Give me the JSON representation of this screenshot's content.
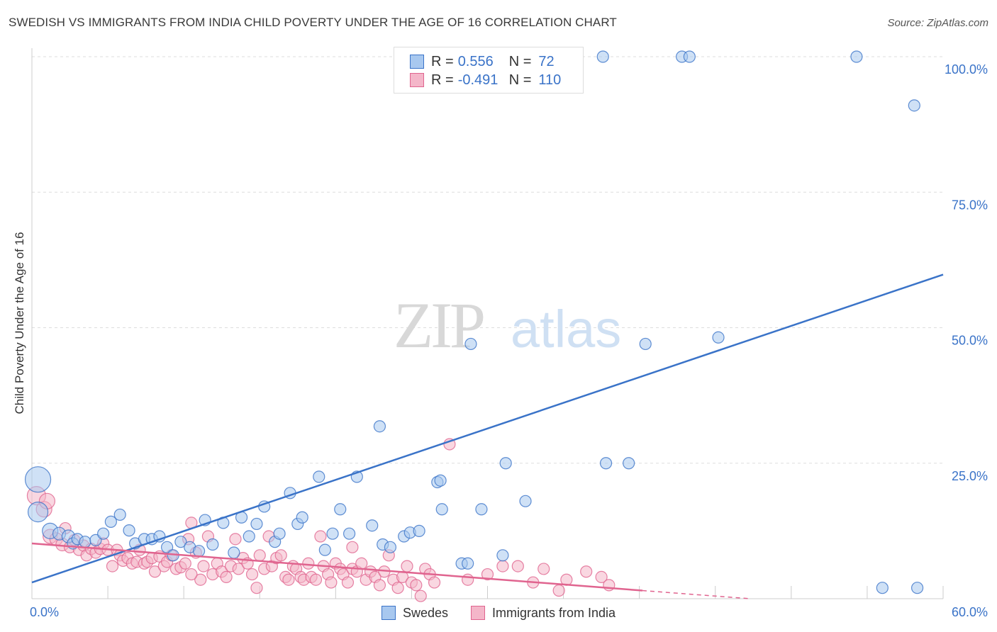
{
  "title": "SWEDISH VS IMMIGRANTS FROM INDIA CHILD POVERTY UNDER THE AGE OF 16 CORRELATION CHART",
  "source": "Source: ZipAtlas.com",
  "watermark": {
    "zip": "ZIP",
    "atlas": "atlas"
  },
  "colors": {
    "blue": "#3a73c8",
    "blue_fill": "#a8c8ef",
    "pink": "#e0648f",
    "pink_fill": "#f4b6c9",
    "grid": "#dddddd"
  },
  "stats": [
    {
      "r_label": "R =",
      "r_value": "0.556",
      "n_label": "N =",
      "n_value": "72"
    },
    {
      "r_label": "R =",
      "r_value": "-0.491",
      "n_label": "N =",
      "n_value": "110"
    }
  ],
  "legend": [
    {
      "label": "Swedes"
    },
    {
      "label": "Immigrants from India"
    }
  ],
  "chart_data": {
    "type": "scatter",
    "xlabel": "",
    "ylabel": "Child Poverty Under the Age of 16",
    "xlim": [
      0,
      60
    ],
    "ylim": [
      0,
      100
    ],
    "x_tick_labels": [
      {
        "value": 0,
        "label": "0.0%"
      },
      {
        "value": 60,
        "label": "60.0%"
      }
    ],
    "y_tick_labels": [
      {
        "value": 25,
        "label": "25.0%"
      },
      {
        "value": 50,
        "label": "50.0%"
      },
      {
        "value": 75,
        "label": "75.0%"
      },
      {
        "value": 100,
        "label": "100.0%"
      }
    ],
    "grid": true,
    "legend_position": "bottom",
    "series": [
      {
        "name": "Swedes",
        "color": "#3a73c8",
        "trend": {
          "x": [
            0,
            60
          ],
          "y": [
            3.0,
            59.8
          ]
        },
        "points": [
          [
            0.4,
            22.0,
            18
          ],
          [
            0.4,
            16.0,
            14
          ],
          [
            1.2,
            12.5,
            11
          ],
          [
            1.8,
            12.0,
            9
          ],
          [
            2.4,
            11.5,
            9
          ],
          [
            2.7,
            10.2,
            8
          ],
          [
            3.0,
            11.0,
            8
          ],
          [
            3.5,
            10.5,
            8
          ],
          [
            4.2,
            10.8,
            8
          ],
          [
            4.7,
            12.0,
            8
          ],
          [
            5.2,
            14.2,
            8
          ],
          [
            5.8,
            15.5,
            8
          ],
          [
            6.4,
            12.6,
            8
          ],
          [
            6.8,
            10.2,
            8
          ],
          [
            7.4,
            11.0,
            8
          ],
          [
            7.9,
            11.0,
            8
          ],
          [
            8.4,
            11.5,
            8
          ],
          [
            8.9,
            9.5,
            8
          ],
          [
            9.3,
            8.0,
            8
          ],
          [
            9.8,
            10.5,
            8
          ],
          [
            10.4,
            9.5,
            8
          ],
          [
            11.0,
            8.8,
            8
          ],
          [
            11.4,
            14.5,
            8
          ],
          [
            11.9,
            10.0,
            8
          ],
          [
            12.6,
            14.0,
            8
          ],
          [
            13.3,
            8.5,
            8
          ],
          [
            13.8,
            15.0,
            8
          ],
          [
            14.3,
            11.5,
            8
          ],
          [
            14.8,
            13.8,
            8
          ],
          [
            15.3,
            17.0,
            8
          ],
          [
            16.0,
            10.5,
            8
          ],
          [
            16.3,
            12.0,
            8
          ],
          [
            17.0,
            19.5,
            8
          ],
          [
            17.5,
            13.8,
            8
          ],
          [
            17.8,
            15.0,
            8
          ],
          [
            18.9,
            22.5,
            8
          ],
          [
            19.3,
            9.0,
            8
          ],
          [
            19.8,
            12.0,
            8
          ],
          [
            20.3,
            16.5,
            8
          ],
          [
            20.9,
            12.0,
            8
          ],
          [
            21.4,
            22.5,
            8
          ],
          [
            22.4,
            13.5,
            8
          ],
          [
            22.9,
            31.8,
            8
          ],
          [
            23.1,
            10.0,
            8
          ],
          [
            23.6,
            9.5,
            8
          ],
          [
            24.5,
            11.5,
            8
          ],
          [
            24.9,
            12.2,
            8
          ],
          [
            25.5,
            12.5,
            8
          ],
          [
            26.7,
            21.5,
            8
          ],
          [
            26.9,
            21.8,
            8
          ],
          [
            27.0,
            16.5,
            8
          ],
          [
            28.3,
            6.5,
            8
          ],
          [
            28.7,
            6.5,
            8
          ],
          [
            28.9,
            47.0,
            8
          ],
          [
            29.1,
            96.0,
            8
          ],
          [
            29.6,
            16.5,
            8
          ],
          [
            31.0,
            8.0,
            8
          ],
          [
            31.2,
            25.0,
            8
          ],
          [
            32.5,
            18.0,
            8
          ],
          [
            37.6,
            100.0,
            8
          ],
          [
            37.8,
            25.0,
            8
          ],
          [
            39.3,
            25.0,
            8
          ],
          [
            40.4,
            47.0,
            8
          ],
          [
            42.8,
            100.0,
            8
          ],
          [
            43.3,
            100.0,
            8
          ],
          [
            45.2,
            48.2,
            8
          ],
          [
            54.3,
            100.0,
            8
          ],
          [
            56.0,
            2.0,
            8
          ],
          [
            58.1,
            91.0,
            8
          ],
          [
            58.3,
            2.0,
            8
          ]
        ]
      },
      {
        "name": "Immigrants from India",
        "color": "#e0648f",
        "trend": {
          "x": [
            0,
            40.2
          ],
          "y": [
            10.2,
            1.5
          ]
        },
        "trend_dashed": {
          "x": [
            40.2,
            47.3
          ],
          "y": [
            1.5,
            0.0
          ]
        },
        "points": [
          [
            0.3,
            19.0,
            13
          ],
          [
            0.8,
            16.5,
            11
          ],
          [
            1.0,
            18.0,
            11
          ],
          [
            1.2,
            11.5,
            10
          ],
          [
            1.6,
            11.0,
            9
          ],
          [
            2.0,
            10.0,
            9
          ],
          [
            2.2,
            13.0,
            8
          ],
          [
            2.5,
            9.5,
            8
          ],
          [
            2.8,
            10.8,
            8
          ],
          [
            3.1,
            9.0,
            8
          ],
          [
            3.4,
            9.8,
            8
          ],
          [
            3.6,
            8.0,
            8
          ],
          [
            3.9,
            9.2,
            8
          ],
          [
            4.2,
            8.5,
            8
          ],
          [
            4.5,
            9.2,
            8
          ],
          [
            4.7,
            10.2,
            8
          ],
          [
            5.0,
            9.0,
            8
          ],
          [
            5.3,
            6.0,
            8
          ],
          [
            5.6,
            9.0,
            8
          ],
          [
            5.8,
            8.0,
            8
          ],
          [
            6.0,
            7.0,
            8
          ],
          [
            6.3,
            7.5,
            8
          ],
          [
            6.6,
            6.5,
            8
          ],
          [
            6.9,
            6.8,
            8
          ],
          [
            7.1,
            9.0,
            8
          ],
          [
            7.4,
            6.5,
            8
          ],
          [
            7.6,
            6.8,
            8
          ],
          [
            7.9,
            7.5,
            8
          ],
          [
            8.1,
            5.0,
            8
          ],
          [
            8.4,
            7.8,
            8
          ],
          [
            8.7,
            6.0,
            8
          ],
          [
            8.9,
            6.8,
            8
          ],
          [
            9.2,
            8.0,
            8
          ],
          [
            9.5,
            5.5,
            8
          ],
          [
            9.8,
            5.8,
            8
          ],
          [
            10.1,
            6.5,
            8
          ],
          [
            10.3,
            11.0,
            8
          ],
          [
            10.5,
            14.0,
            8
          ],
          [
            10.8,
            8.5,
            8
          ],
          [
            11.1,
            3.5,
            8
          ],
          [
            11.3,
            6.0,
            8
          ],
          [
            11.6,
            11.5,
            8
          ],
          [
            11.9,
            4.5,
            8
          ],
          [
            12.2,
            6.5,
            8
          ],
          [
            12.5,
            5.0,
            8
          ],
          [
            12.8,
            4.0,
            8
          ],
          [
            13.1,
            6.0,
            8
          ],
          [
            13.4,
            11.0,
            8
          ],
          [
            13.6,
            5.5,
            8
          ],
          [
            13.9,
            7.5,
            8
          ],
          [
            14.2,
            6.5,
            8
          ],
          [
            14.5,
            4.5,
            8
          ],
          [
            14.8,
            2.0,
            8
          ],
          [
            15.0,
            8.0,
            8
          ],
          [
            15.3,
            5.5,
            8
          ],
          [
            15.6,
            11.5,
            8
          ],
          [
            15.8,
            6.0,
            8
          ],
          [
            16.1,
            7.5,
            8
          ],
          [
            16.4,
            8.0,
            8
          ],
          [
            16.7,
            4.0,
            8
          ],
          [
            16.9,
            3.5,
            8
          ],
          [
            17.2,
            6.0,
            8
          ],
          [
            17.4,
            5.5,
            8
          ],
          [
            17.7,
            4.0,
            8
          ],
          [
            17.9,
            3.5,
            8
          ],
          [
            18.2,
            6.5,
            8
          ],
          [
            18.4,
            4.0,
            8
          ],
          [
            18.7,
            3.5,
            8
          ],
          [
            19.0,
            11.5,
            8
          ],
          [
            19.2,
            6.0,
            8
          ],
          [
            19.5,
            4.5,
            8
          ],
          [
            19.7,
            3.0,
            8
          ],
          [
            20.0,
            6.5,
            8
          ],
          [
            20.3,
            5.5,
            8
          ],
          [
            20.5,
            4.5,
            8
          ],
          [
            20.8,
            3.0,
            8
          ],
          [
            21.1,
            5.5,
            8
          ],
          [
            21.4,
            5.0,
            8
          ],
          [
            21.7,
            6.5,
            8
          ],
          [
            22.0,
            3.5,
            8
          ],
          [
            22.3,
            5.0,
            8
          ],
          [
            22.6,
            4.0,
            8
          ],
          [
            22.9,
            2.5,
            8
          ],
          [
            23.2,
            5.0,
            8
          ],
          [
            23.5,
            8.0,
            8
          ],
          [
            23.8,
            3.5,
            8
          ],
          [
            24.1,
            2.0,
            8
          ],
          [
            24.4,
            4.0,
            8
          ],
          [
            24.7,
            6.0,
            8
          ],
          [
            25.0,
            3.0,
            8
          ],
          [
            25.3,
            2.5,
            8
          ],
          [
            25.6,
            0.5,
            8
          ],
          [
            25.9,
            5.5,
            8
          ],
          [
            26.2,
            4.5,
            8
          ],
          [
            26.5,
            3.0,
            8
          ],
          [
            27.5,
            28.5,
            8
          ],
          [
            28.7,
            3.5,
            8
          ],
          [
            30.0,
            4.5,
            8
          ],
          [
            31.0,
            6.0,
            8
          ],
          [
            32.0,
            6.0,
            8
          ],
          [
            33.0,
            3.0,
            8
          ],
          [
            33.7,
            5.5,
            8
          ],
          [
            34.7,
            1.5,
            8
          ],
          [
            35.2,
            3.5,
            8
          ],
          [
            36.5,
            5.0,
            8
          ],
          [
            37.5,
            4.0,
            8
          ],
          [
            38.0,
            2.5,
            8
          ],
          [
            21.1,
            9.5,
            8
          ],
          [
            10.5,
            4.5,
            8
          ]
        ]
      }
    ]
  }
}
